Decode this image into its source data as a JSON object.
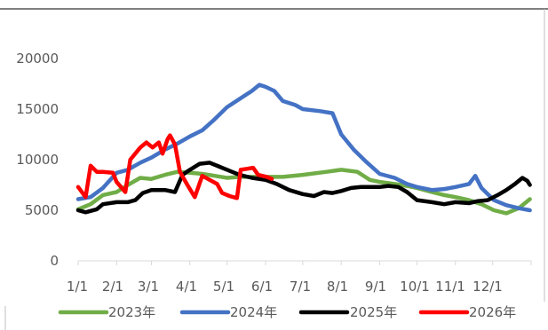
{
  "chart_data": {
    "type": "line",
    "title": "",
    "xlabel": "",
    "ylabel": "",
    "ylim": [
      0,
      20000
    ],
    "yticks": [
      0,
      5000,
      10000,
      15000,
      20000
    ],
    "grid": false,
    "legend_position": "bottom",
    "x_tick_labels": [
      "1/1",
      "2/1",
      "3/1",
      "4/1",
      "5/1",
      "6/1",
      "7/1",
      "8/1",
      "9/1",
      "10/1",
      "11/1",
      "12/1"
    ],
    "x_range_days": [
      0,
      365
    ],
    "series": [
      {
        "name": "2023年",
        "color": "#70ad47",
        "points": [
          [
            0,
            5100
          ],
          [
            10,
            5600
          ],
          [
            20,
            6500
          ],
          [
            31,
            6800
          ],
          [
            40,
            7500
          ],
          [
            50,
            8200
          ],
          [
            59,
            8100
          ],
          [
            70,
            8500
          ],
          [
            80,
            8800
          ],
          [
            90,
            8700
          ],
          [
            100,
            8600
          ],
          [
            110,
            8400
          ],
          [
            120,
            8200
          ],
          [
            130,
            8300
          ],
          [
            140,
            8300
          ],
          [
            151,
            8300
          ],
          [
            165,
            8300
          ],
          [
            181,
            8500
          ],
          [
            200,
            8800
          ],
          [
            212,
            9000
          ],
          [
            225,
            8800
          ],
          [
            235,
            8000
          ],
          [
            243,
            7800
          ],
          [
            255,
            7600
          ],
          [
            265,
            7400
          ],
          [
            273,
            7200
          ],
          [
            285,
            6800
          ],
          [
            295,
            6500
          ],
          [
            304,
            6300
          ],
          [
            315,
            6000
          ],
          [
            325,
            5600
          ],
          [
            335,
            5000
          ],
          [
            345,
            4700
          ],
          [
            355,
            5200
          ],
          [
            364,
            6100
          ]
        ]
      },
      {
        "name": "2024年",
        "color": "#4472c4",
        "points": [
          [
            0,
            6100
          ],
          [
            10,
            6300
          ],
          [
            20,
            7200
          ],
          [
            31,
            8700
          ],
          [
            40,
            9000
          ],
          [
            50,
            9700
          ],
          [
            59,
            10200
          ],
          [
            70,
            11000
          ],
          [
            80,
            11600
          ],
          [
            90,
            12300
          ],
          [
            100,
            12900
          ],
          [
            110,
            14000
          ],
          [
            120,
            15200
          ],
          [
            130,
            16000
          ],
          [
            140,
            16800
          ],
          [
            146,
            17400
          ],
          [
            151,
            17200
          ],
          [
            158,
            16800
          ],
          [
            165,
            15800
          ],
          [
            175,
            15400
          ],
          [
            181,
            15000
          ],
          [
            195,
            14800
          ],
          [
            205,
            14600
          ],
          [
            212,
            12500
          ],
          [
            222,
            11000
          ],
          [
            232,
            9800
          ],
          [
            243,
            8600
          ],
          [
            255,
            8200
          ],
          [
            265,
            7600
          ],
          [
            273,
            7300
          ],
          [
            285,
            7000
          ],
          [
            295,
            7100
          ],
          [
            304,
            7300
          ],
          [
            315,
            7600
          ],
          [
            320,
            8400
          ],
          [
            325,
            7200
          ],
          [
            335,
            6000
          ],
          [
            345,
            5500
          ],
          [
            355,
            5200
          ],
          [
            364,
            5000
          ]
        ]
      },
      {
        "name": "2025年",
        "color": "#000000",
        "points": [
          [
            0,
            5000
          ],
          [
            6,
            4800
          ],
          [
            15,
            5100
          ],
          [
            20,
            5600
          ],
          [
            31,
            5800
          ],
          [
            40,
            5800
          ],
          [
            46,
            6000
          ],
          [
            52,
            6700
          ],
          [
            59,
            7000
          ],
          [
            70,
            7000
          ],
          [
            78,
            6800
          ],
          [
            84,
            8500
          ],
          [
            90,
            9000
          ],
          [
            98,
            9600
          ],
          [
            106,
            9700
          ],
          [
            114,
            9300
          ],
          [
            120,
            9000
          ],
          [
            130,
            8500
          ],
          [
            140,
            8200
          ],
          [
            151,
            8000
          ],
          [
            160,
            7600
          ],
          [
            170,
            7000
          ],
          [
            181,
            6600
          ],
          [
            190,
            6400
          ],
          [
            198,
            6800
          ],
          [
            205,
            6700
          ],
          [
            212,
            6900
          ],
          [
            220,
            7200
          ],
          [
            228,
            7300
          ],
          [
            235,
            7300
          ],
          [
            243,
            7300
          ],
          [
            250,
            7400
          ],
          [
            258,
            7300
          ],
          [
            265,
            6800
          ],
          [
            273,
            6000
          ],
          [
            285,
            5800
          ],
          [
            295,
            5600
          ],
          [
            304,
            5800
          ],
          [
            315,
            5700
          ],
          [
            322,
            5900
          ],
          [
            330,
            6000
          ],
          [
            338,
            6500
          ],
          [
            345,
            7000
          ],
          [
            352,
            7600
          ],
          [
            358,
            8200
          ],
          [
            362,
            7900
          ],
          [
            364,
            7500
          ]
        ]
      },
      {
        "name": "2026年",
        "color": "#ff0000",
        "points": [
          [
            0,
            7300
          ],
          [
            6,
            6300
          ],
          [
            10,
            9400
          ],
          [
            15,
            8800
          ],
          [
            20,
            8800
          ],
          [
            28,
            8700
          ],
          [
            31,
            7800
          ],
          [
            38,
            6800
          ],
          [
            42,
            10000
          ],
          [
            46,
            10600
          ],
          [
            50,
            11200
          ],
          [
            55,
            11700
          ],
          [
            60,
            11200
          ],
          [
            65,
            11700
          ],
          [
            68,
            10600
          ],
          [
            72,
            12000
          ],
          [
            74,
            12400
          ],
          [
            78,
            11500
          ],
          [
            82,
            8800
          ],
          [
            88,
            7500
          ],
          [
            94,
            6300
          ],
          [
            100,
            8400
          ],
          [
            106,
            8000
          ],
          [
            112,
            7600
          ],
          [
            116,
            6700
          ],
          [
            122,
            6400
          ],
          [
            128,
            6200
          ],
          [
            131,
            9000
          ],
          [
            136,
            9100
          ],
          [
            141,
            9200
          ],
          [
            145,
            8500
          ],
          [
            152,
            8300
          ],
          [
            156,
            8100
          ]
        ]
      }
    ]
  }
}
